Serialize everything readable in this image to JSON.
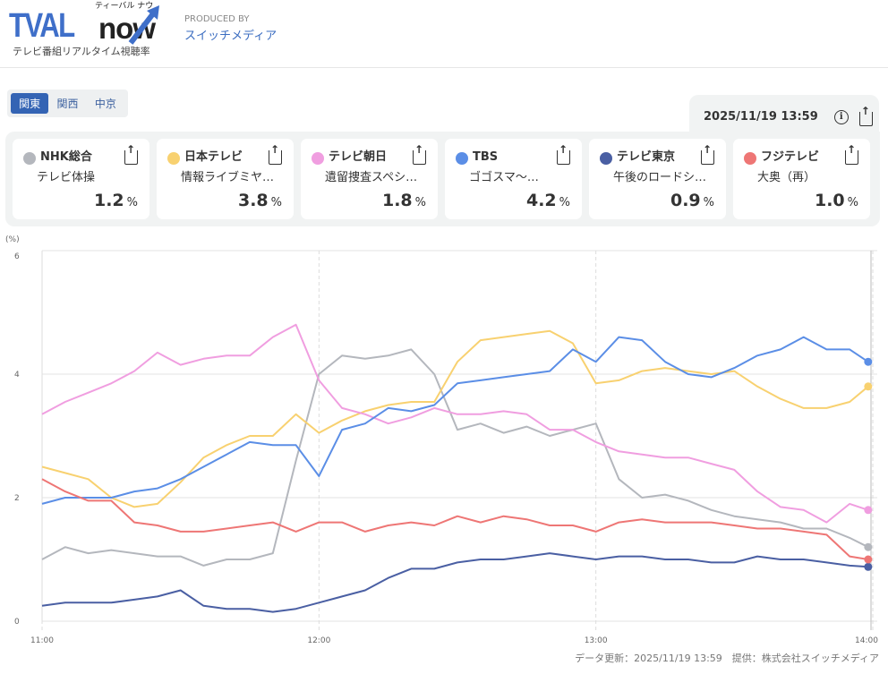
{
  "header": {
    "logo_main": "TVAL",
    "logo_now": "now",
    "logo_kana": "ティーバル ナウ",
    "logo_sub": "テレビ番組リアルタイム視聴率",
    "produced_by": "PRODUCED BY",
    "producer": "スイッチメディア"
  },
  "region_tabs": [
    {
      "label": "関東",
      "active": true
    },
    {
      "label": "関西",
      "active": false
    },
    {
      "label": "中京",
      "active": false
    }
  ],
  "timestamp": "2025/11/19 13:59",
  "channels": [
    {
      "name": "NHK総合",
      "program": "テレビ体操",
      "rating": "1.2",
      "unit": "%",
      "color": "#b4b7bd"
    },
    {
      "name": "日本テレビ",
      "program": "情報ライブミヤ…",
      "rating": "3.8",
      "unit": "%",
      "color": "#f8d170"
    },
    {
      "name": "テレビ朝日",
      "program": "遺留捜査スペシ…",
      "rating": "1.8",
      "unit": "%",
      "color": "#f09ee0"
    },
    {
      "name": "TBS",
      "program": "ゴゴスマ〜…",
      "rating": "4.2",
      "unit": "%",
      "color": "#5b8ee6"
    },
    {
      "name": "テレビ東京",
      "program": "午後のロードシ…",
      "rating": "0.9",
      "unit": "%",
      "color": "#4a5fa3"
    },
    {
      "name": "フジテレビ",
      "program": "大奥（再）",
      "rating": "1.0",
      "unit": "%",
      "color": "#ee7675"
    }
  ],
  "chart_data": {
    "type": "line",
    "ylabel": "(%)",
    "ylim": [
      0,
      6
    ],
    "yticks": [
      "0",
      "2",
      "4",
      "6"
    ],
    "xticks": [
      "11:00",
      "12:00",
      "13:00",
      "14:00"
    ],
    "grid": true,
    "x": [
      "11:00",
      "11:05",
      "11:10",
      "11:15",
      "11:20",
      "11:25",
      "11:30",
      "11:35",
      "11:40",
      "11:45",
      "11:50",
      "11:55",
      "12:00",
      "12:05",
      "12:10",
      "12:15",
      "12:20",
      "12:25",
      "12:30",
      "12:35",
      "12:40",
      "12:45",
      "12:50",
      "12:55",
      "13:00",
      "13:05",
      "13:10",
      "13:15",
      "13:20",
      "13:25",
      "13:30",
      "13:35",
      "13:40",
      "13:45",
      "13:50",
      "13:55",
      "13:59"
    ],
    "series": [
      {
        "name": "NHK総合",
        "color": "#b4b7bd",
        "values": [
          1.0,
          1.2,
          1.1,
          1.15,
          1.1,
          1.05,
          1.05,
          0.9,
          1.0,
          1.0,
          1.1,
          2.6,
          4.0,
          4.3,
          4.25,
          4.3,
          4.4,
          4.0,
          3.1,
          3.2,
          3.05,
          3.15,
          3.0,
          3.1,
          3.2,
          2.3,
          2.0,
          2.05,
          1.95,
          1.8,
          1.7,
          1.65,
          1.6,
          1.5,
          1.5,
          1.35,
          1.2
        ]
      },
      {
        "name": "日本テレビ",
        "color": "#f8d170",
        "values": [
          2.5,
          2.4,
          2.3,
          2.0,
          1.85,
          1.9,
          2.25,
          2.65,
          2.85,
          3.0,
          3.0,
          3.35,
          3.05,
          3.25,
          3.4,
          3.5,
          3.55,
          3.55,
          4.2,
          4.55,
          4.6,
          4.65,
          4.7,
          4.5,
          3.85,
          3.9,
          4.05,
          4.1,
          4.05,
          4.0,
          4.05,
          3.8,
          3.6,
          3.45,
          3.45,
          3.55,
          3.8
        ]
      },
      {
        "name": "テレビ朝日",
        "color": "#f09ee0",
        "values": [
          3.35,
          3.55,
          3.7,
          3.85,
          4.05,
          4.35,
          4.15,
          4.25,
          4.3,
          4.3,
          4.6,
          4.8,
          3.9,
          3.45,
          3.35,
          3.2,
          3.3,
          3.45,
          3.35,
          3.35,
          3.4,
          3.35,
          3.1,
          3.1,
          2.9,
          2.75,
          2.7,
          2.65,
          2.65,
          2.55,
          2.45,
          2.1,
          1.85,
          1.8,
          1.6,
          1.9,
          1.8
        ]
      },
      {
        "name": "TBS",
        "color": "#5b8ee6",
        "values": [
          1.9,
          2.0,
          2.0,
          2.0,
          2.1,
          2.15,
          2.3,
          2.5,
          2.7,
          2.9,
          2.85,
          2.85,
          2.35,
          3.1,
          3.2,
          3.45,
          3.4,
          3.5,
          3.85,
          3.9,
          3.95,
          4.0,
          4.05,
          4.4,
          4.2,
          4.6,
          4.55,
          4.2,
          4.0,
          3.95,
          4.1,
          4.3,
          4.4,
          4.6,
          4.4,
          4.4,
          4.2
        ]
      },
      {
        "name": "テレビ東京",
        "color": "#4a5fa3",
        "values": [
          0.25,
          0.3,
          0.3,
          0.3,
          0.35,
          0.4,
          0.5,
          0.25,
          0.2,
          0.2,
          0.15,
          0.2,
          0.3,
          0.4,
          0.5,
          0.7,
          0.85,
          0.85,
          0.95,
          1.0,
          1.0,
          1.05,
          1.1,
          1.05,
          1.0,
          1.05,
          1.05,
          1.0,
          1.0,
          0.95,
          0.95,
          1.05,
          1.0,
          1.0,
          0.95,
          0.9,
          0.88
        ]
      },
      {
        "name": "フジテレビ",
        "color": "#ee7675",
        "values": [
          2.3,
          2.1,
          1.95,
          1.95,
          1.6,
          1.55,
          1.45,
          1.45,
          1.5,
          1.55,
          1.6,
          1.45,
          1.6,
          1.6,
          1.45,
          1.55,
          1.6,
          1.55,
          1.7,
          1.6,
          1.7,
          1.65,
          1.55,
          1.55,
          1.45,
          1.6,
          1.65,
          1.6,
          1.6,
          1.6,
          1.55,
          1.5,
          1.5,
          1.45,
          1.4,
          1.05,
          1.0
        ]
      }
    ]
  },
  "footer": "データ更新：2025/11/19 13:59　提供：株式会社スイッチメディア"
}
